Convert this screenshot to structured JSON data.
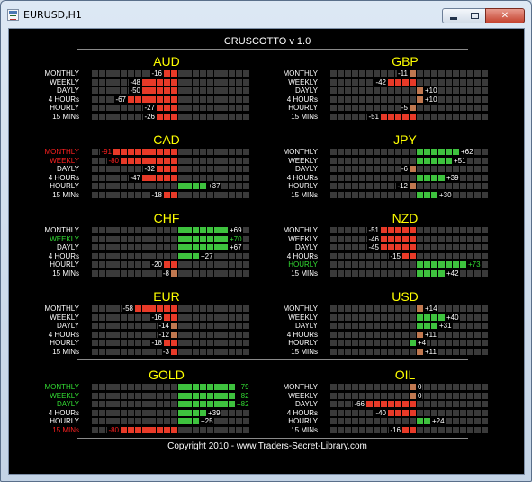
{
  "window": {
    "title": "EURUSD,H1",
    "controls": {
      "minimize": "minimize",
      "maximize": "maximize",
      "close": "✕"
    },
    "icon": "chart-window-icon"
  },
  "panel": {
    "title": "CRUSCOTTO v 1.0",
    "footer": "Copyright 2010 - www.Traders-Secret-Library.com"
  },
  "colors": {
    "negative": "#e83a28",
    "positive": "#3ec23e",
    "neutral": "#3a3a3a",
    "currency_title": "#ffff00",
    "highlight_red": "#ff2020",
    "highlight_green": "#33dd33"
  },
  "timeframe_labels": [
    "MONTHLY",
    "WEEKLY",
    "DAYLY",
    "4 HOURs",
    "HOURLY",
    "15 MINs"
  ],
  "currencies": [
    {
      "name": "AUD",
      "rows": [
        {
          "label": "MONTHLY",
          "value": -16,
          "text": "-16",
          "hl": ""
        },
        {
          "label": "WEEKLY",
          "value": -48,
          "text": "-48",
          "hl": ""
        },
        {
          "label": "DAYLY",
          "value": -50,
          "text": "-50",
          "hl": ""
        },
        {
          "label": "4 HOURs",
          "value": -67,
          "text": "-67",
          "hl": ""
        },
        {
          "label": "HOURLY",
          "value": -27,
          "text": "-27",
          "hl": ""
        },
        {
          "label": "15 MINs",
          "value": -26,
          "text": "-26",
          "hl": ""
        }
      ]
    },
    {
      "name": "GBP",
      "rows": [
        {
          "label": "MONTHLY",
          "value": -11,
          "text": "-11",
          "hl": ""
        },
        {
          "label": "WEEKLY",
          "value": -42,
          "text": "-42",
          "hl": ""
        },
        {
          "label": "DAYLY",
          "value": 10,
          "text": "+10",
          "hl": ""
        },
        {
          "label": "4 HOURs",
          "value": 10,
          "text": "+10",
          "hl": ""
        },
        {
          "label": "HOURLY",
          "value": -5,
          "text": "-5",
          "hl": ""
        },
        {
          "label": "15 MINs",
          "value": -51,
          "text": "-51",
          "hl": ""
        }
      ]
    },
    {
      "name": "CAD",
      "rows": [
        {
          "label": "MONTHLY",
          "value": -91,
          "text": "-91",
          "hl": "red"
        },
        {
          "label": "WEEKLY",
          "value": -80,
          "text": "-80",
          "hl": "red"
        },
        {
          "label": "DAYLY",
          "value": -32,
          "text": "-32",
          "hl": ""
        },
        {
          "label": "4 HOURs",
          "value": -47,
          "text": "-47",
          "hl": ""
        },
        {
          "label": "HOURLY",
          "value": 37,
          "text": "+37",
          "hl": ""
        },
        {
          "label": "15 MINs",
          "value": -18,
          "text": "-18",
          "hl": ""
        }
      ]
    },
    {
      "name": "JPY",
      "rows": [
        {
          "label": "MONTHLY",
          "value": 62,
          "text": "+62",
          "hl": ""
        },
        {
          "label": "WEEKLY",
          "value": 51,
          "text": "+51",
          "hl": ""
        },
        {
          "label": "DAYLY",
          "value": -6,
          "text": "-6",
          "hl": ""
        },
        {
          "label": "4 HOURs",
          "value": 39,
          "text": "+39",
          "hl": ""
        },
        {
          "label": "HOURLY",
          "value": -12,
          "text": "-12",
          "hl": ""
        },
        {
          "label": "15 MINs",
          "value": 30,
          "text": "+30",
          "hl": ""
        }
      ]
    },
    {
      "name": "CHF",
      "rows": [
        {
          "label": "MONTHLY",
          "value": 69,
          "text": "+69",
          "hl": ""
        },
        {
          "label": "WEEKLY",
          "value": 70,
          "text": "+70",
          "hl": "green"
        },
        {
          "label": "DAYLY",
          "value": 67,
          "text": "+67",
          "hl": ""
        },
        {
          "label": "4 HOURs",
          "value": 27,
          "text": "+27",
          "hl": ""
        },
        {
          "label": "HOURLY",
          "value": -20,
          "text": "-20",
          "hl": ""
        },
        {
          "label": "15 MINs",
          "value": -8,
          "text": "-8",
          "hl": ""
        }
      ]
    },
    {
      "name": "NZD",
      "rows": [
        {
          "label": "MONTHLY",
          "value": -51,
          "text": "-51",
          "hl": ""
        },
        {
          "label": "WEEKLY",
          "value": -46,
          "text": "-46",
          "hl": ""
        },
        {
          "label": "DAYLY",
          "value": -45,
          "text": "-45",
          "hl": ""
        },
        {
          "label": "4 HOURs",
          "value": -15,
          "text": "-15",
          "hl": ""
        },
        {
          "label": "HOURLY",
          "value": 73,
          "text": "+73",
          "hl": "green"
        },
        {
          "label": "15 MINs",
          "value": 42,
          "text": "+42",
          "hl": ""
        }
      ]
    },
    {
      "name": "EUR",
      "rows": [
        {
          "label": "MONTHLY",
          "value": -58,
          "text": "-58",
          "hl": ""
        },
        {
          "label": "WEEKLY",
          "value": -16,
          "text": "-16",
          "hl": ""
        },
        {
          "label": "DAYLY",
          "value": -14,
          "text": "-14",
          "hl": ""
        },
        {
          "label": "4 HOURs",
          "value": -12,
          "text": "-12",
          "hl": ""
        },
        {
          "label": "HOURLY",
          "value": -18,
          "text": "-18",
          "hl": ""
        },
        {
          "label": "15 MINs",
          "value": -3,
          "text": "-3",
          "hl": ""
        }
      ]
    },
    {
      "name": "USD",
      "rows": [
        {
          "label": "MONTHLY",
          "value": 14,
          "text": "+14",
          "hl": ""
        },
        {
          "label": "WEEKLY",
          "value": 40,
          "text": "+40",
          "hl": ""
        },
        {
          "label": "DAYLY",
          "value": 31,
          "text": "+31",
          "hl": ""
        },
        {
          "label": "4 HOURs",
          "value": 11,
          "text": "+11",
          "hl": ""
        },
        {
          "label": "HOURLY",
          "value": 4,
          "text": "+4",
          "hl": ""
        },
        {
          "label": "15 MINs",
          "value": 11,
          "text": "+11",
          "hl": ""
        }
      ]
    },
    {
      "name": "GOLD",
      "rows": [
        {
          "label": "MONTHLY",
          "value": 79,
          "text": "+79",
          "hl": "green"
        },
        {
          "label": "WEEKLY",
          "value": 82,
          "text": "+82",
          "hl": "green"
        },
        {
          "label": "DAYLY",
          "value": 82,
          "text": "+82",
          "hl": "green"
        },
        {
          "label": "4 HOURs",
          "value": 39,
          "text": "+39",
          "hl": ""
        },
        {
          "label": "HOURLY",
          "value": 25,
          "text": "+25",
          "hl": ""
        },
        {
          "label": "15 MINs",
          "value": -80,
          "text": "-80",
          "hl": "red"
        }
      ]
    },
    {
      "name": "OIL",
      "rows": [
        {
          "label": "MONTHLY",
          "value": 0,
          "text": "0",
          "hl": ""
        },
        {
          "label": "WEEKLY",
          "value": 0,
          "text": "0",
          "hl": ""
        },
        {
          "label": "DAYLY",
          "value": -66,
          "text": "-66",
          "hl": ""
        },
        {
          "label": "4 HOURs",
          "value": -40,
          "text": "-40",
          "hl": ""
        },
        {
          "label": "HOURLY",
          "value": 24,
          "text": "+24",
          "hl": ""
        },
        {
          "label": "15 MINs",
          "value": -16,
          "text": "-16",
          "hl": ""
        }
      ]
    }
  ]
}
